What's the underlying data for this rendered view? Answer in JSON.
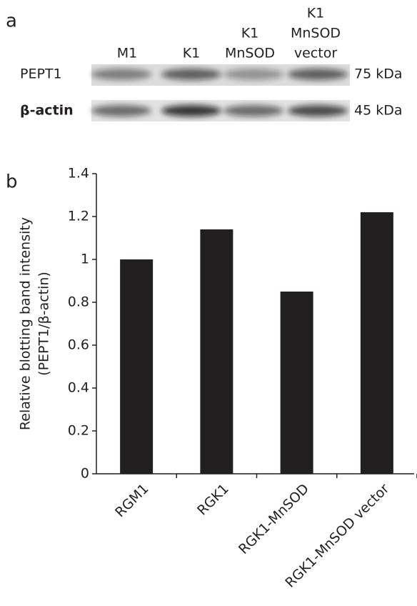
{
  "panel_a": {
    "label": "a",
    "lanes": [
      [
        "M1"
      ],
      [
        "K1"
      ],
      [
        "K1",
        "MnSOD"
      ],
      [
        "K1",
        "MnSOD",
        "vector"
      ]
    ],
    "rows": [
      {
        "name": "PEPT1",
        "size": "75 kDa"
      },
      {
        "name": "β-actin",
        "size": "45 kDa"
      }
    ]
  },
  "chart_data": {
    "type": "bar",
    "panel_label": "b",
    "y_label": [
      "Relative blotting band intensity",
      "(PEPT1/β-actin)"
    ],
    "categories": [
      "RGM1",
      "RGK1",
      "RGK1-MnSOD",
      "RGK1-MnSOD vector"
    ],
    "values": [
      1.0,
      1.14,
      0.85,
      1.22
    ],
    "color": "#231f20",
    "ylim": [
      0,
      1.4
    ],
    "yticks": [
      0,
      0.2,
      0.4,
      0.6,
      0.8,
      1,
      1.2,
      1.4
    ]
  }
}
